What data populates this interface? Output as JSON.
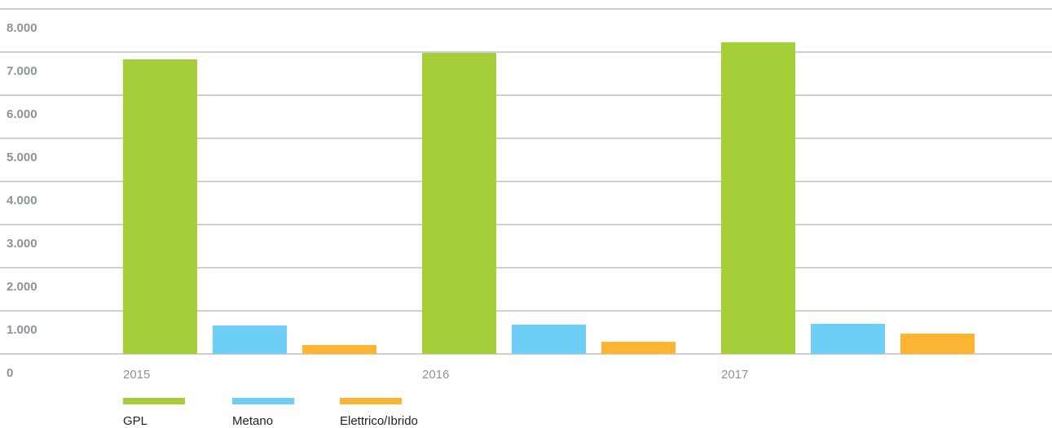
{
  "chart_data": {
    "type": "bar",
    "categories": [
      "2015",
      "2016",
      "2017"
    ],
    "series": [
      {
        "name": "GPL",
        "color": "#a6ce39",
        "values": [
          6830,
          6980,
          7226
        ]
      },
      {
        "name": "Metano",
        "color": "#6dcff6",
        "values": [
          660,
          680,
          700
        ]
      },
      {
        "name": "Elettrico/Ibrido",
        "color": "#fbb532",
        "values": [
          208,
          283,
          472
        ]
      }
    ],
    "ylim": [
      0,
      8000
    ],
    "yticks": [
      0,
      {
        "value": 1000,
        "label": "1.000"
      },
      {
        "value": 2000,
        "label": "2.000"
      },
      {
        "value": 3000,
        "label": "3.000"
      },
      {
        "value": 4000,
        "label": "4.000"
      },
      {
        "value": 5000,
        "label": "5.000"
      },
      {
        "value": 6000,
        "label": "6.000"
      },
      {
        "value": 7000,
        "label": "7.000"
      },
      {
        "value": 8000,
        "label": "8.000"
      }
    ],
    "grid": true,
    "legend": "bottom"
  }
}
